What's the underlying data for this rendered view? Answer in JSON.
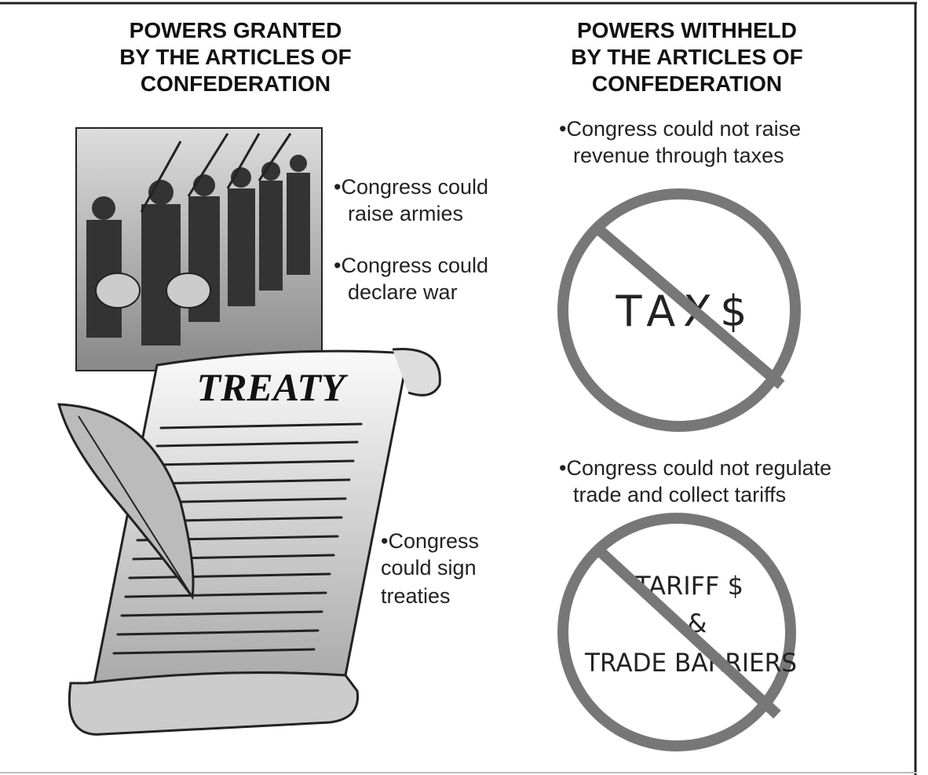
{
  "granted": {
    "title": [
      "POWERS GRANTED",
      "BY THE ARTICLES OF",
      "CONFEDERATION"
    ],
    "items": [
      [
        "•Congress could",
        "raise armies"
      ],
      [
        "•Congress could",
        "declare war"
      ],
      [
        "•Congress",
        "could sign",
        "treaties"
      ]
    ],
    "scroll_text": "TREATY"
  },
  "withheld": {
    "title": [
      "POWERS WITHHELD",
      "BY THE ARTICLES OF",
      "CONFEDERATION"
    ],
    "items": [
      [
        "•Congress could not raise",
        "revenue through taxes"
      ],
      [
        "•Congress could not regulate",
        "trade and collect tariffs"
      ]
    ],
    "sign1": [
      "TAX$"
    ],
    "sign2": [
      "TARIFF $",
      "&",
      "TRADE BARRIERS"
    ]
  }
}
